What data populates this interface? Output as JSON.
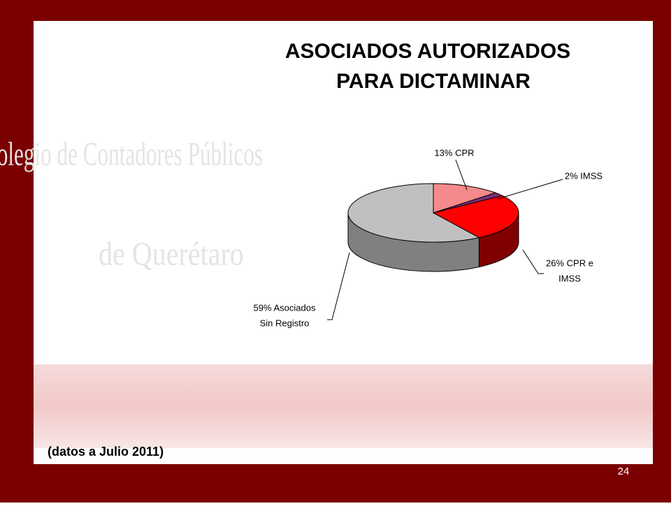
{
  "chart_data": {
    "type": "pie3d",
    "title": [
      "ASOCIADOS AUTORIZADOS",
      "PARA DICTAMINAR"
    ],
    "values": [
      13,
      2,
      26,
      59
    ],
    "value_labels": [
      [
        "13% CPR"
      ],
      [
        "2%  IMSS"
      ],
      [
        "26% CPR e",
        "IMSS"
      ],
      [
        "59% Asociados",
        "Sin Registro"
      ]
    ],
    "colors": [
      "#f48a8a",
      "#7a2f7a",
      "#ff0000",
      "#c0c0c0"
    ],
    "side_colors": [
      "#b86060",
      "#4a1a4a",
      "#800000",
      "#808080"
    ],
    "note": "(datos a Julio 2011)",
    "page_number": "24",
    "watermark": [
      "Colegio de Contadores Públicos",
      "de Querétaro"
    ]
  }
}
